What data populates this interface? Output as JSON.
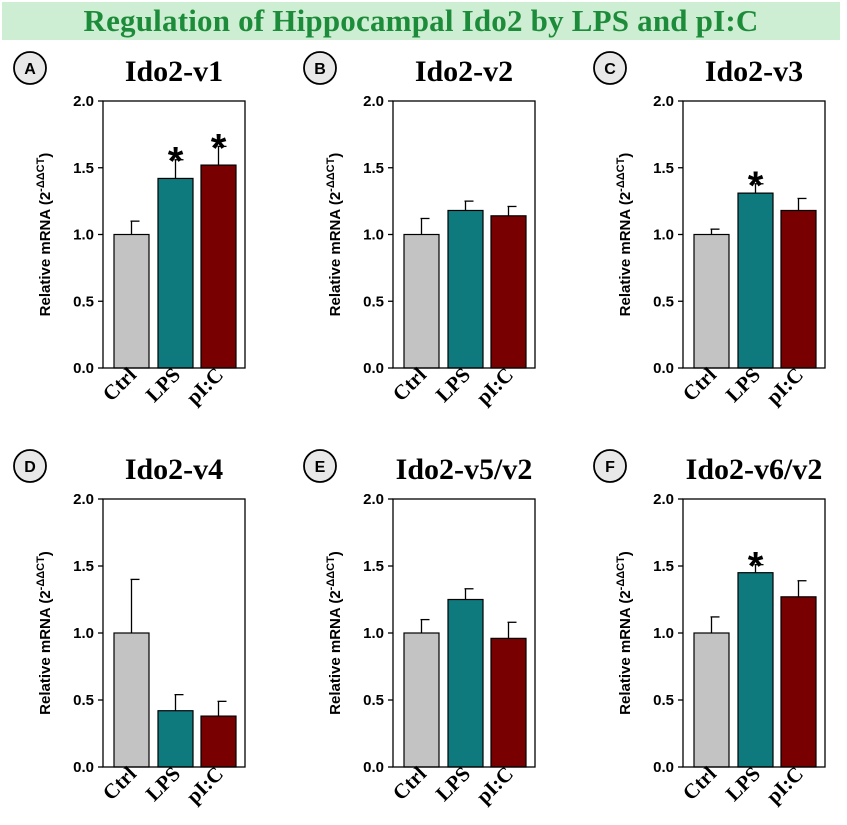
{
  "banner": {
    "title": "Regulation of Hippocampal Ido2 by LPS and pI:C"
  },
  "colors": {
    "Ctrl": "#c3c3c3",
    "LPS": "#0e7a7e",
    "pI:C": "#780000",
    "banner_bg": "#cdeed2",
    "banner_text": "#1d8c3a"
  },
  "chart_data": [
    {
      "type": "bar",
      "panel": "A",
      "title": "Ido2-v1",
      "categories": [
        "Ctrl",
        "LPS",
        "pI:C"
      ],
      "values": [
        1.0,
        1.42,
        1.52
      ],
      "errors": [
        0.1,
        0.14,
        0.14
      ],
      "significant": [
        false,
        true,
        true
      ],
      "ylabel": "Relative mRNA (2",
      "ylabel_sup": "-ΔΔCT",
      "ylabel_close": ")",
      "ylim": [
        0,
        2.0
      ],
      "yticks": [
        "0.0",
        "0.5",
        "1.0",
        "1.5",
        "2.0"
      ]
    },
    {
      "type": "bar",
      "panel": "B",
      "title": "Ido2-v2",
      "categories": [
        "Ctrl",
        "LPS",
        "pI:C"
      ],
      "values": [
        1.0,
        1.18,
        1.14
      ],
      "errors": [
        0.12,
        0.07,
        0.07
      ],
      "significant": [
        false,
        false,
        false
      ],
      "ylabel": "Relative mRNA (2",
      "ylabel_sup": "-ΔΔCT",
      "ylabel_close": ")",
      "ylim": [
        0,
        2.0
      ],
      "yticks": [
        "0.0",
        "0.5",
        "1.0",
        "1.5",
        "2.0"
      ]
    },
    {
      "type": "bar",
      "panel": "C",
      "title": "Ido2-v3",
      "categories": [
        "Ctrl",
        "LPS",
        "pI:C"
      ],
      "values": [
        1.0,
        1.31,
        1.18
      ],
      "errors": [
        0.04,
        0.07,
        0.09
      ],
      "significant": [
        false,
        true,
        false
      ],
      "ylabel": "Relative mRNA (2",
      "ylabel_sup": "-ΔΔCT",
      "ylabel_close": ")",
      "ylim": [
        0,
        2.0
      ],
      "yticks": [
        "0.0",
        "0.5",
        "1.0",
        "1.5",
        "2.0"
      ]
    },
    {
      "type": "bar",
      "panel": "D",
      "title": "Ido2-v4",
      "categories": [
        "Ctrl",
        "LPS",
        "pI:C"
      ],
      "values": [
        1.0,
        0.42,
        0.38
      ],
      "errors": [
        0.4,
        0.12,
        0.11
      ],
      "significant": [
        false,
        false,
        false
      ],
      "ylabel": "Relative mRNA (2",
      "ylabel_sup": "-ΔΔCT",
      "ylabel_close": ")",
      "ylim": [
        0,
        2.0
      ],
      "yticks": [
        "0.0",
        "0.5",
        "1.0",
        "1.5",
        "2.0"
      ]
    },
    {
      "type": "bar",
      "panel": "E",
      "title": "Ido2-v5/v2",
      "categories": [
        "Ctrl",
        "LPS",
        "pI:C"
      ],
      "values": [
        1.0,
        1.25,
        0.96
      ],
      "errors": [
        0.1,
        0.08,
        0.12
      ],
      "significant": [
        false,
        false,
        false
      ],
      "ylabel": "Relative mRNA (2",
      "ylabel_sup": "-ΔΔCT",
      "ylabel_close": ")",
      "ylim": [
        0,
        2.0
      ],
      "yticks": [
        "0.0",
        "0.5",
        "1.0",
        "1.5",
        "2.0"
      ]
    },
    {
      "type": "bar",
      "panel": "F",
      "title": "Ido2-v6/v2",
      "categories": [
        "Ctrl",
        "LPS",
        "pI:C"
      ],
      "values": [
        1.0,
        1.45,
        1.27
      ],
      "errors": [
        0.12,
        0.06,
        0.12
      ],
      "significant": [
        false,
        true,
        false
      ],
      "ylabel": "Relative mRNA (2",
      "ylabel_sup": "-ΔΔCT",
      "ylabel_close": ")",
      "ylim": [
        0,
        2.0
      ],
      "yticks": [
        "0.0",
        "0.5",
        "1.0",
        "1.5",
        "2.0"
      ]
    }
  ]
}
